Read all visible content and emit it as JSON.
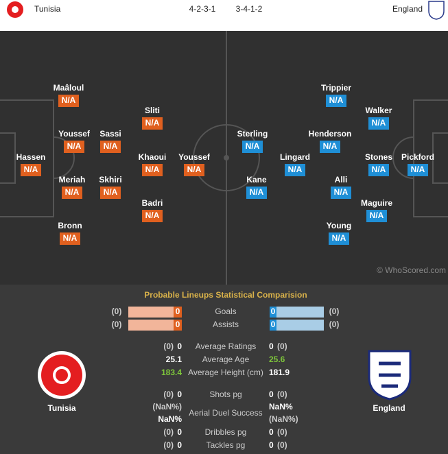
{
  "header": {
    "home_team": "Tunisia",
    "home_formation": "4-2-3-1",
    "away_formation": "3-4-1-2",
    "away_team": "England"
  },
  "pitch": {
    "credit": "© WhoScored.com",
    "home_players": [
      {
        "name": "Maâloul",
        "rating": "N/A"
      },
      {
        "name": "Youssef",
        "rating": "N/A"
      },
      {
        "name": "Meriah",
        "rating": "N/A"
      },
      {
        "name": "Bronn",
        "rating": "N/A"
      },
      {
        "name": "Hassen",
        "rating": "N/A"
      },
      {
        "name": "Sassi",
        "rating": "N/A"
      },
      {
        "name": "Skhiri",
        "rating": "N/A"
      },
      {
        "name": "Sliti",
        "rating": "N/A"
      },
      {
        "name": "Khaoui",
        "rating": "N/A"
      },
      {
        "name": "Badri",
        "rating": "N/A"
      },
      {
        "name": "Youssef",
        "rating": "N/A"
      }
    ],
    "away_players": [
      {
        "name": "Trippier",
        "rating": "N/A"
      },
      {
        "name": "Walker",
        "rating": "N/A"
      },
      {
        "name": "Henderson",
        "rating": "N/A"
      },
      {
        "name": "Stones",
        "rating": "N/A"
      },
      {
        "name": "Pickford",
        "rating": "N/A"
      },
      {
        "name": "Sterling",
        "rating": "N/A"
      },
      {
        "name": "Lingard",
        "rating": "N/A"
      },
      {
        "name": "Alli",
        "rating": "N/A"
      },
      {
        "name": "Kane",
        "rating": "N/A"
      },
      {
        "name": "Maguire",
        "rating": "N/A"
      },
      {
        "name": "Young",
        "rating": "N/A"
      }
    ]
  },
  "comparison": {
    "title": "Probable Lineups Statistical Comparision",
    "home_team": "Tunisia",
    "away_team": "England",
    "rows": [
      {
        "label": "Goals",
        "home_total": "(0)",
        "home_value": "0",
        "away_value": "0",
        "away_total": "(0)"
      },
      {
        "label": "Assists",
        "home_total": "(0)",
        "home_value": "0",
        "away_value": "0",
        "away_total": "(0)"
      },
      {
        "label": "Average Ratings",
        "home_total": "(0)",
        "home_value": "0",
        "away_value": "0",
        "away_total": "(0)"
      },
      {
        "label": "Average Age",
        "home_value": "25.1",
        "away_value": "25.6"
      },
      {
        "label": "Average Height (cm)",
        "home_value": "183.4",
        "away_value": "181.9"
      },
      {
        "label": "Shots pg",
        "home_total": "(0)",
        "home_value": "0",
        "away_value": "0",
        "away_total": "(0)"
      },
      {
        "label": "Aerial Duel Success",
        "home_total": "(NaN%)",
        "home_value": "NaN%",
        "away_value": "NaN%",
        "away_total": "(NaN%)"
      },
      {
        "label": "Dribbles pg",
        "home_total": "(0)",
        "home_value": "0",
        "away_value": "0",
        "away_total": "(0)"
      },
      {
        "label": "Tackles pg",
        "home_total": "(0)",
        "home_value": "0",
        "away_value": "0",
        "away_total": "(0)"
      }
    ]
  }
}
